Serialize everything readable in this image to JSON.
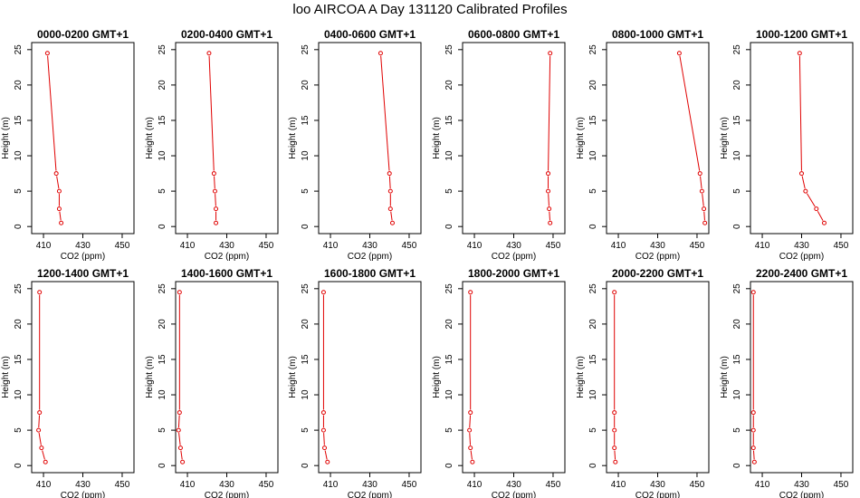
{
  "title": "loo AIRCOA A  Day 131120  Calibrated Profiles",
  "colors": {
    "series": "#e00000",
    "axis": "#000000"
  },
  "chart_data": [
    {
      "type": "line",
      "title": "0000-0200 GMT+1",
      "xlabel": "CO2 (ppm)",
      "ylabel": "Height (m)",
      "xlim": [
        404,
        456
      ],
      "ylim": [
        -1,
        26
      ],
      "xticks": [
        410,
        430,
        450
      ],
      "yticks": [
        0,
        5,
        10,
        15,
        20,
        25
      ],
      "series": [
        {
          "x": [
            412,
            416.5,
            418,
            418,
            419
          ],
          "y": [
            24.5,
            7.5,
            5,
            2.5,
            0.5
          ]
        }
      ]
    },
    {
      "type": "line",
      "title": "0200-0400 GMT+1",
      "xlabel": "CO2 (ppm)",
      "ylabel": "Height (m)",
      "xlim": [
        404,
        456
      ],
      "ylim": [
        -1,
        26
      ],
      "xticks": [
        410,
        430,
        450
      ],
      "yticks": [
        0,
        5,
        10,
        15,
        20,
        25
      ],
      "series": [
        {
          "x": [
            421,
            423.5,
            424,
            424.5,
            424.5
          ],
          "y": [
            24.5,
            7.5,
            5,
            2.5,
            0.5
          ]
        }
      ]
    },
    {
      "type": "line",
      "title": "0400-0600 GMT+1",
      "xlabel": "CO2 (ppm)",
      "ylabel": "Height (m)",
      "xlim": [
        404,
        456
      ],
      "ylim": [
        -1,
        26
      ],
      "xticks": [
        410,
        430,
        450
      ],
      "yticks": [
        0,
        5,
        10,
        15,
        20,
        25
      ],
      "series": [
        {
          "x": [
            435.5,
            440,
            440.5,
            440.5,
            441.5
          ],
          "y": [
            24.5,
            7.5,
            5,
            2.5,
            0.5
          ]
        }
      ]
    },
    {
      "type": "line",
      "title": "0600-0800 GMT+1",
      "xlabel": "CO2 (ppm)",
      "ylabel": "Height (m)",
      "xlim": [
        404,
        456
      ],
      "ylim": [
        -1,
        26
      ],
      "xticks": [
        410,
        430,
        450
      ],
      "yticks": [
        0,
        5,
        10,
        15,
        20,
        25
      ],
      "series": [
        {
          "x": [
            448.5,
            447.5,
            447.5,
            448,
            448.5
          ],
          "y": [
            24.5,
            7.5,
            5,
            2.5,
            0.5
          ]
        }
      ]
    },
    {
      "type": "line",
      "title": "0800-1000 GMT+1",
      "xlabel": "CO2 (ppm)",
      "ylabel": "Height (m)",
      "xlim": [
        404,
        456
      ],
      "ylim": [
        -1,
        26
      ],
      "xticks": [
        410,
        430,
        450
      ],
      "yticks": [
        0,
        5,
        10,
        15,
        20,
        25
      ],
      "series": [
        {
          "x": [
            441,
            451.5,
            452.5,
            453.5,
            454
          ],
          "y": [
            24.5,
            7.5,
            5,
            2.5,
            0.5
          ]
        }
      ]
    },
    {
      "type": "line",
      "title": "1000-1200 GMT+1",
      "xlabel": "CO2 (ppm)",
      "ylabel": "Height (m)",
      "xlim": [
        404,
        456
      ],
      "ylim": [
        -1,
        26
      ],
      "xticks": [
        410,
        430,
        450
      ],
      "yticks": [
        0,
        5,
        10,
        15,
        20,
        25
      ],
      "series": [
        {
          "x": [
            429,
            430,
            432,
            437.5,
            441.5
          ],
          "y": [
            24.5,
            7.5,
            5,
            2.5,
            0.5
          ]
        }
      ]
    },
    {
      "type": "line",
      "title": "1200-1400 GMT+1",
      "xlabel": "CO2 (ppm)",
      "ylabel": "Height (m)",
      "xlim": [
        404,
        456
      ],
      "ylim": [
        -1,
        26
      ],
      "xticks": [
        410,
        430,
        450
      ],
      "yticks": [
        0,
        5,
        10,
        15,
        20,
        25
      ],
      "series": [
        {
          "x": [
            408,
            408,
            407.5,
            409,
            411
          ],
          "y": [
            24.5,
            7.5,
            5,
            2.5,
            0.5
          ]
        }
      ]
    },
    {
      "type": "line",
      "title": "1400-1600 GMT+1",
      "xlabel": "CO2 (ppm)",
      "ylabel": "Height (m)",
      "xlim": [
        404,
        456
      ],
      "ylim": [
        -1,
        26
      ],
      "xticks": [
        410,
        430,
        450
      ],
      "yticks": [
        0,
        5,
        10,
        15,
        20,
        25
      ],
      "series": [
        {
          "x": [
            406,
            406,
            405.5,
            406.5,
            407.5
          ],
          "y": [
            24.5,
            7.5,
            5,
            2.5,
            0.5
          ]
        }
      ]
    },
    {
      "type": "line",
      "title": "1600-1800 GMT+1",
      "xlabel": "CO2 (ppm)",
      "ylabel": "Height (m)",
      "xlim": [
        404,
        456
      ],
      "ylim": [
        -1,
        26
      ],
      "xticks": [
        410,
        430,
        450
      ],
      "yticks": [
        0,
        5,
        10,
        15,
        20,
        25
      ],
      "series": [
        {
          "x": [
            406.5,
            406.5,
            406.5,
            407,
            408.5
          ],
          "y": [
            24.5,
            7.5,
            5,
            2.5,
            0.5
          ]
        }
      ]
    },
    {
      "type": "line",
      "title": "1800-2000 GMT+1",
      "xlabel": "CO2 (ppm)",
      "ylabel": "Height (m)",
      "xlim": [
        404,
        456
      ],
      "ylim": [
        -1,
        26
      ],
      "xticks": [
        410,
        430,
        450
      ],
      "yticks": [
        0,
        5,
        10,
        15,
        20,
        25
      ],
      "series": [
        {
          "x": [
            408,
            408,
            407.5,
            408,
            409
          ],
          "y": [
            24.5,
            7.5,
            5,
            2.5,
            0.5
          ]
        }
      ]
    },
    {
      "type": "line",
      "title": "2000-2200 GMT+1",
      "xlabel": "CO2 (ppm)",
      "ylabel": "Height (m)",
      "xlim": [
        404,
        456
      ],
      "ylim": [
        -1,
        26
      ],
      "xticks": [
        410,
        430,
        450
      ],
      "yticks": [
        0,
        5,
        10,
        15,
        20,
        25
      ],
      "series": [
        {
          "x": [
            408,
            408,
            408,
            408,
            408.5
          ],
          "y": [
            24.5,
            7.5,
            5,
            2.5,
            0.5
          ]
        }
      ]
    },
    {
      "type": "line",
      "title": "2200-2400 GMT+1",
      "xlabel": "CO2 (ppm)",
      "ylabel": "Height (m)",
      "xlim": [
        404,
        456
      ],
      "ylim": [
        -1,
        26
      ],
      "xticks": [
        410,
        430,
        450
      ],
      "yticks": [
        0,
        5,
        10,
        15,
        20,
        25
      ],
      "series": [
        {
          "x": [
            405.5,
            405.5,
            405.5,
            405.5,
            406
          ],
          "y": [
            24.5,
            7.5,
            5,
            2.5,
            0.5
          ]
        }
      ]
    }
  ]
}
